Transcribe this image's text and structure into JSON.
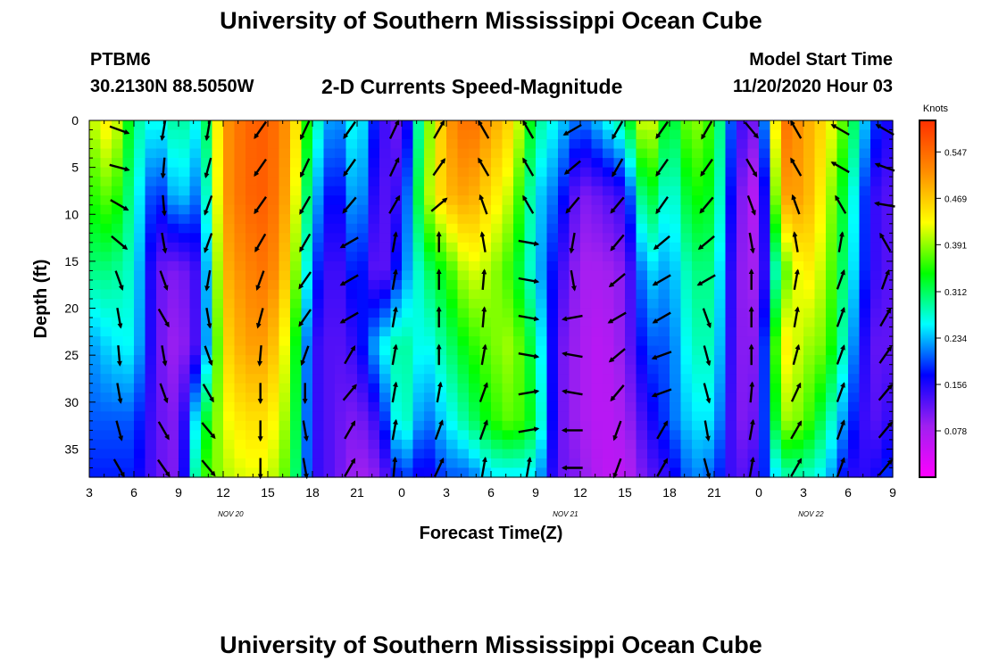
{
  "header": {
    "title": "University of Southern Mississippi Ocean Cube",
    "station_id": "PTBM6",
    "coordinates": "30.2130N 88.5050W",
    "subtitle": "2-D Currents Speed-Magnitude",
    "model_start_label": "Model Start Time",
    "model_start_value": "11/20/2020 Hour 03"
  },
  "footer": {
    "title": "University of Southern Mississippi Ocean Cube"
  },
  "colors": {
    "scale": [
      "#ff00ff",
      "#a020f0",
      "#0000ff",
      "#00ffff",
      "#00ff00",
      "#ffff00",
      "#ff8c00",
      "#ff3000"
    ],
    "arrow": "#000000",
    "axis": "#000000"
  },
  "chart_data": {
    "type": "heatmap",
    "xlabel": "Forecast Time(Z)",
    "ylabel": "Depth (ft)",
    "units": "Knots",
    "xlim": [
      0,
      54
    ],
    "ylim": [
      0,
      38
    ],
    "vmin": 0.0,
    "vmax": 0.6,
    "x_ticks": [
      "3",
      "6",
      "9",
      "12",
      "15",
      "18",
      "21",
      "0",
      "3",
      "6",
      "9",
      "12",
      "15",
      "18",
      "21",
      "0",
      "3",
      "6",
      "9"
    ],
    "date_labels": [
      {
        "label": "NOV 20",
        "x": 9.5
      },
      {
        "label": "NOV 21",
        "x": 32
      },
      {
        "label": "NOV 22",
        "x": 48.5
      }
    ],
    "y_ticks": [
      "0",
      "5",
      "10",
      "15",
      "20",
      "25",
      "30",
      "35"
    ],
    "colorbar_ticks": [
      "0.547",
      "0.469",
      "0.391",
      "0.312",
      "0.234",
      "0.156",
      "0.078"
    ],
    "colorbar_values": [
      0.547,
      0.469,
      0.391,
      0.312,
      0.234,
      0.156,
      0.078
    ],
    "depths": [
      0,
      8,
      16,
      24,
      32,
      38
    ],
    "hours": [
      0,
      1.5,
      3,
      4.5,
      6,
      7.5,
      9,
      10.5,
      12,
      13.5,
      15,
      16.5,
      18,
      19.5,
      21,
      22.5,
      24,
      25.5,
      27,
      28.5,
      30,
      31.5,
      33,
      34.5,
      36,
      37.5,
      39,
      40.5,
      42,
      43.5,
      45,
      46.5,
      48,
      49.5,
      51,
      52.5,
      54
    ],
    "speed_profiles": [
      [
        0.4,
        0.35,
        0.3,
        0.22,
        0.2,
        0.18
      ],
      [
        0.45,
        0.38,
        0.3,
        0.25,
        0.2,
        0.18
      ],
      [
        0.3,
        0.28,
        0.27,
        0.26,
        0.2,
        0.18
      ],
      [
        0.25,
        0.17,
        0.12,
        0.12,
        0.12,
        0.12
      ],
      [
        0.3,
        0.25,
        0.1,
        0.08,
        0.1,
        0.1
      ],
      [
        0.25,
        0.2,
        0.15,
        0.15,
        0.3,
        0.35
      ],
      [
        0.5,
        0.5,
        0.48,
        0.45,
        0.42,
        0.4
      ],
      [
        0.55,
        0.55,
        0.52,
        0.5,
        0.45,
        0.42
      ],
      [
        0.56,
        0.56,
        0.54,
        0.5,
        0.45,
        0.42
      ],
      [
        0.5,
        0.48,
        0.45,
        0.4,
        0.38,
        0.36
      ],
      [
        0.3,
        0.25,
        0.2,
        0.15,
        0.15,
        0.15
      ],
      [
        0.2,
        0.15,
        0.12,
        0.12,
        0.12,
        0.12
      ],
      [
        0.28,
        0.25,
        0.2,
        0.15,
        0.1,
        0.08
      ],
      [
        0.15,
        0.12,
        0.1,
        0.25,
        0.15,
        0.1
      ],
      [
        0.1,
        0.15,
        0.2,
        0.3,
        0.3,
        0.2
      ],
      [
        0.35,
        0.38,
        0.3,
        0.25,
        0.2,
        0.15
      ],
      [
        0.5,
        0.48,
        0.35,
        0.3,
        0.25,
        0.2
      ],
      [
        0.55,
        0.5,
        0.42,
        0.35,
        0.3,
        0.2
      ],
      [
        0.5,
        0.45,
        0.4,
        0.38,
        0.35,
        0.25
      ],
      [
        0.45,
        0.4,
        0.35,
        0.4,
        0.38,
        0.25
      ],
      [
        0.3,
        0.25,
        0.25,
        0.3,
        0.32,
        0.25
      ],
      [
        0.25,
        0.2,
        0.15,
        0.12,
        0.12,
        0.12
      ],
      [
        0.2,
        0.1,
        0.08,
        0.08,
        0.08,
        0.1
      ],
      [
        0.25,
        0.12,
        0.08,
        0.06,
        0.06,
        0.06
      ],
      [
        0.3,
        0.15,
        0.1,
        0.1,
        0.08,
        0.06
      ],
      [
        0.45,
        0.35,
        0.25,
        0.2,
        0.15,
        0.12
      ],
      [
        0.3,
        0.25,
        0.22,
        0.2,
        0.2,
        0.15
      ],
      [
        0.4,
        0.35,
        0.3,
        0.28,
        0.25,
        0.22
      ],
      [
        0.35,
        0.33,
        0.3,
        0.28,
        0.25,
        0.2
      ],
      [
        0.15,
        0.12,
        0.1,
        0.1,
        0.1,
        0.12
      ],
      [
        0.1,
        0.05,
        0.08,
        0.1,
        0.12,
        0.15
      ],
      [
        0.55,
        0.5,
        0.35,
        0.45,
        0.4,
        0.28
      ],
      [
        0.5,
        0.5,
        0.45,
        0.4,
        0.38,
        0.28
      ],
      [
        0.45,
        0.42,
        0.4,
        0.38,
        0.3,
        0.25
      ],
      [
        0.35,
        0.3,
        0.28,
        0.25,
        0.2,
        0.15
      ],
      [
        0.2,
        0.15,
        0.15,
        0.12,
        0.12,
        0.15
      ],
      [
        0.15,
        0.12,
        0.12,
        0.12,
        0.15,
        0.2
      ]
    ],
    "arrow_hours": [
      2,
      5,
      8,
      11.5,
      14.5,
      17.5,
      20.5,
      23.5,
      26.5,
      29.5,
      32.5,
      35.5,
      38.5,
      41.5,
      44.5,
      47.5,
      50.5,
      53.5
    ],
    "arrow_depths": [
      1,
      5,
      9,
      13,
      17,
      21,
      25,
      29,
      33,
      37
    ],
    "arrow_directions_deg": [
      [
        110,
        105,
        120,
        130,
        160,
        170,
        175,
        170,
        165,
        150
      ],
      [
        190,
        185,
        175,
        170,
        160,
        150,
        170,
        160,
        150,
        145
      ],
      [
        190,
        195,
        200,
        200,
        190,
        170,
        160,
        150,
        140,
        140
      ],
      [
        215,
        215,
        215,
        210,
        200,
        195,
        185,
        180,
        180,
        180
      ],
      [
        205,
        205,
        210,
        210,
        215,
        215,
        200,
        180,
        170,
        170
      ],
      [
        215,
        215,
        220,
        240,
        240,
        240,
        30,
        40,
        30,
        30
      ],
      [
        25,
        25,
        30,
        10,
        10,
        10,
        10,
        10,
        10,
        5
      ],
      [
        30,
        35,
        50,
        0,
        0,
        0,
        0,
        10,
        20,
        25
      ],
      [
        330,
        330,
        340,
        350,
        5,
        5,
        10,
        20,
        20,
        10
      ],
      [
        330,
        330,
        330,
        100,
        100,
        100,
        100,
        80,
        80,
        10
      ],
      [
        240,
        230,
        220,
        190,
        170,
        260,
        280,
        280,
        270,
        270
      ],
      [
        210,
        210,
        220,
        220,
        230,
        240,
        230,
        220,
        200,
        200
      ],
      [
        215,
        215,
        215,
        230,
        240,
        240,
        250,
        250,
        30,
        30
      ],
      [
        210,
        215,
        220,
        230,
        240,
        160,
        165,
        165,
        170,
        165
      ],
      [
        140,
        150,
        160,
        170,
        0,
        0,
        0,
        5,
        10,
        10
      ],
      [
        330,
        330,
        340,
        350,
        10,
        10,
        15,
        25,
        30,
        30
      ],
      [
        300,
        300,
        330,
        10,
        20,
        20,
        20,
        20,
        20,
        20
      ],
      [
        300,
        290,
        280,
        330,
        20,
        30,
        35,
        40,
        40,
        40
      ]
    ]
  }
}
